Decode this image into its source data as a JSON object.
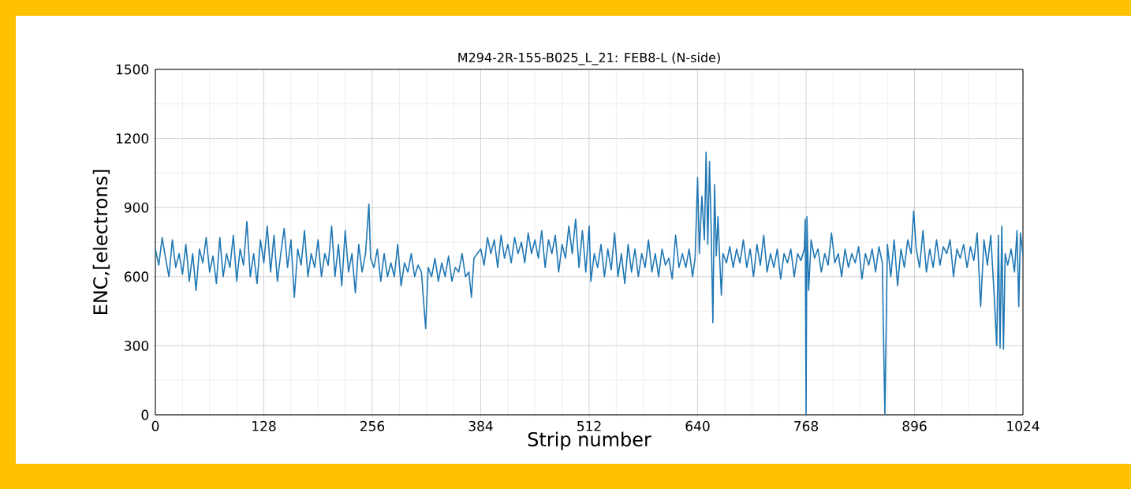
{
  "chart_data": {
    "type": "line",
    "title": "M294-2R-155-B025_L_21: FEB8-L (N-side)",
    "xlabel": "Strip number",
    "ylabel": "ENC,[electrons]",
    "xlim": [
      0,
      1024
    ],
    "xticks": [
      0,
      128,
      256,
      384,
      512,
      640,
      768,
      896,
      1024
    ],
    "ylim": [
      0,
      1500
    ],
    "yticks": [
      0,
      300,
      600,
      900,
      1200,
      1500
    ],
    "grid": true,
    "marker": "none",
    "line_style": "solid",
    "series": [
      {
        "color": "#1f77b4",
        "x": [
          0,
          4,
          8,
          12,
          16,
          20,
          24,
          28,
          32,
          36,
          40,
          44,
          48,
          52,
          56,
          60,
          64,
          68,
          72,
          76,
          80,
          84,
          88,
          92,
          96,
          100,
          104,
          108,
          112,
          116,
          120,
          124,
          128,
          132,
          136,
          140,
          144,
          148,
          152,
          156,
          160,
          164,
          168,
          172,
          176,
          180,
          184,
          188,
          192,
          196,
          200,
          204,
          208,
          212,
          216,
          220,
          224,
          228,
          232,
          236,
          240,
          244,
          248,
          252,
          254,
          258,
          262,
          266,
          270,
          274,
          278,
          282,
          286,
          290,
          294,
          298,
          302,
          306,
          310,
          314,
          319,
          322,
          326,
          330,
          334,
          338,
          342,
          346,
          350,
          354,
          358,
          362,
          366,
          370,
          373,
          376,
          380,
          384,
          388,
          392,
          396,
          400,
          404,
          408,
          412,
          416,
          420,
          424,
          428,
          432,
          436,
          440,
          444,
          448,
          452,
          456,
          460,
          464,
          468,
          472,
          476,
          480,
          484,
          488,
          492,
          496,
          500,
          504,
          508,
          512,
          514,
          518,
          522,
          526,
          530,
          534,
          538,
          542,
          546,
          550,
          554,
          558,
          562,
          566,
          570,
          574,
          578,
          582,
          586,
          590,
          594,
          598,
          602,
          606,
          610,
          614,
          618,
          622,
          626,
          630,
          634,
          637,
          640,
          642,
          645,
          648,
          650,
          652,
          654,
          656,
          658,
          660,
          662,
          664,
          666,
          668,
          670,
          674,
          678,
          682,
          686,
          690,
          694,
          698,
          702,
          706,
          710,
          714,
          718,
          722,
          726,
          730,
          734,
          738,
          742,
          746,
          750,
          754,
          758,
          762,
          766,
          767,
          768,
          769,
          771,
          774,
          778,
          782,
          786,
          790,
          794,
          798,
          802,
          806,
          810,
          814,
          818,
          822,
          826,
          830,
          834,
          838,
          842,
          846,
          850,
          854,
          858,
          861,
          864,
          868,
          872,
          876,
          880,
          884,
          888,
          892,
          895,
          898,
          902,
          906,
          910,
          914,
          918,
          922,
          926,
          930,
          934,
          938,
          942,
          946,
          950,
          954,
          958,
          962,
          966,
          970,
          974,
          978,
          982,
          986,
          990,
          993,
          995,
          997,
          999,
          1001,
          1003,
          1006,
          1010,
          1014,
          1017,
          1019,
          1021,
          1024
        ],
        "values": [
          720,
          650,
          770,
          680,
          600,
          760,
          640,
          700,
          610,
          740,
          580,
          700,
          540,
          720,
          660,
          770,
          620,
          690,
          570,
          770,
          600,
          700,
          640,
          780,
          580,
          720,
          650,
          840,
          600,
          700,
          570,
          760,
          660,
          820,
          620,
          780,
          580,
          700,
          810,
          640,
          760,
          510,
          720,
          650,
          800,
          600,
          700,
          640,
          760,
          600,
          700,
          650,
          820,
          600,
          740,
          560,
          800,
          620,
          700,
          530,
          740,
          620,
          700,
          915,
          680,
          640,
          720,
          580,
          700,
          600,
          660,
          600,
          740,
          560,
          660,
          620,
          700,
          600,
          650,
          620,
          375,
          640,
          600,
          680,
          580,
          660,
          600,
          690,
          580,
          640,
          620,
          700,
          600,
          620,
          510,
          680,
          700,
          720,
          650,
          770,
          700,
          760,
          640,
          780,
          680,
          740,
          660,
          770,
          700,
          750,
          660,
          790,
          700,
          760,
          680,
          800,
          640,
          760,
          700,
          780,
          620,
          740,
          680,
          820,
          700,
          850,
          640,
          800,
          620,
          820,
          580,
          700,
          640,
          740,
          600,
          720,
          630,
          790,
          600,
          700,
          570,
          740,
          620,
          720,
          600,
          700,
          640,
          760,
          620,
          700,
          600,
          720,
          650,
          680,
          590,
          780,
          640,
          700,
          640,
          720,
          600,
          680,
          1030,
          700,
          950,
          760,
          1140,
          740,
          1100,
          800,
          400,
          1000,
          690,
          860,
          680,
          520,
          700,
          660,
          730,
          640,
          720,
          660,
          760,
          640,
          720,
          600,
          740,
          650,
          780,
          620,
          700,
          640,
          720,
          590,
          700,
          660,
          720,
          600,
          700,
          670,
          720,
          850,
          0,
          860,
          540,
          760,
          680,
          720,
          620,
          700,
          650,
          790,
          660,
          700,
          600,
          720,
          640,
          700,
          660,
          730,
          590,
          700,
          650,
          720,
          620,
          730,
          660,
          0,
          740,
          600,
          760,
          560,
          720,
          640,
          760,
          700,
          885,
          720,
          640,
          800,
          620,
          720,
          640,
          760,
          650,
          730,
          700,
          760,
          600,
          720,
          680,
          740,
          640,
          730,
          670,
          790,
          470,
          760,
          650,
          780,
          520,
          300,
          780,
          290,
          820,
          285,
          700,
          650,
          720,
          620,
          800,
          470,
          790,
          690
        ]
      }
    ]
  }
}
